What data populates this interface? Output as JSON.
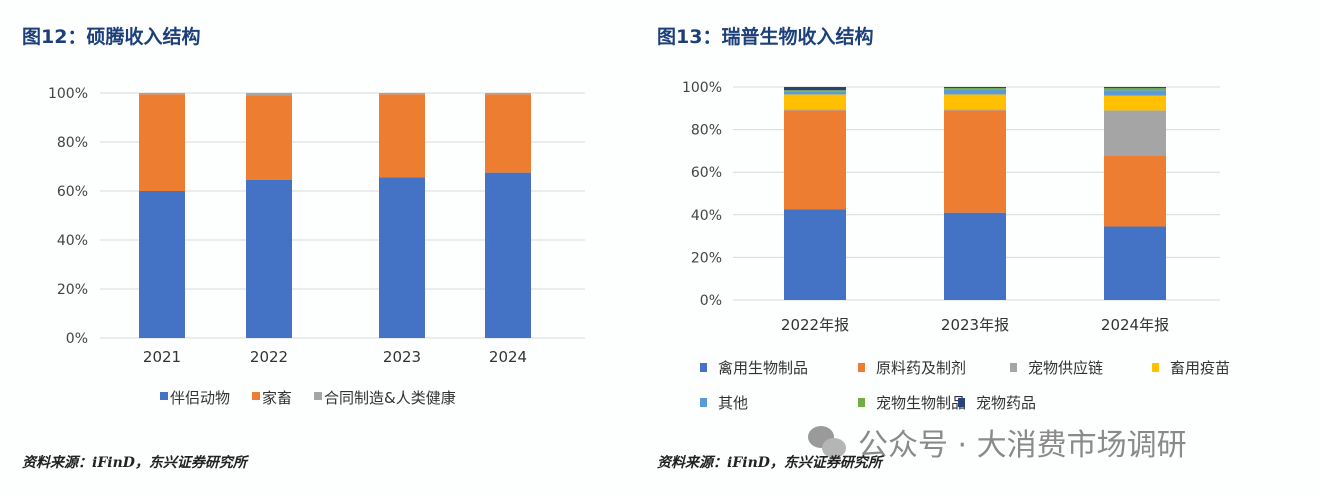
{
  "chart_data": [
    {
      "type": "bar",
      "stacked": true,
      "title": "图12：硕腾收入结构",
      "categories": [
        "2021",
        "2022",
        "2023",
        "2024"
      ],
      "ylim": [
        0,
        100
      ],
      "yticks": [
        "0%",
        "20%",
        "40%",
        "60%",
        "80%",
        "100%"
      ],
      "grid": true,
      "legend_position": "bottom",
      "series": [
        {
          "name": "伴侣动物",
          "color": "#4472c4",
          "values": [
            60,
            64.5,
            65.5,
            67.5
          ]
        },
        {
          "name": "家畜",
          "color": "#ed7d31",
          "values": [
            39.5,
            34.5,
            34,
            32
          ]
        },
        {
          "name": "合同制造&人类健康",
          "color": "#a5a5a5",
          "values": [
            0.5,
            1,
            0.5,
            0.5
          ]
        }
      ],
      "source": "资料来源：iFinD，东兴证券研究所"
    },
    {
      "type": "bar",
      "stacked": true,
      "title": "图13：瑞普生物收入结构",
      "categories": [
        "2022年报",
        "2023年报",
        "2024年报"
      ],
      "ylim": [
        0,
        100
      ],
      "yticks": [
        "0%",
        "20%",
        "40%",
        "60%",
        "80%",
        "100%"
      ],
      "grid": true,
      "legend_position": "bottom",
      "series": [
        {
          "name": "禽用生物制品",
          "color": "#4472c4",
          "values": [
            42.5,
            41,
            34.5
          ]
        },
        {
          "name": "原料药及制剂",
          "color": "#ed7d31",
          "values": [
            46.5,
            48,
            33.5
          ]
        },
        {
          "name": "宠物供应链",
          "color": "#a5a5a5",
          "values": [
            0.5,
            0.5,
            21
          ]
        },
        {
          "name": "畜用疫苗",
          "color": "#ffc000",
          "values": [
            7,
            7,
            7
          ]
        },
        {
          "name": "其他",
          "color": "#5b9bd5",
          "values": [
            1.5,
            2.5,
            2.5
          ]
        },
        {
          "name": "宠物生物制品",
          "color": "#70ad47",
          "values": [
            0.5,
            0.5,
            1
          ]
        },
        {
          "name": "宠物药品",
          "color": "#264478",
          "values": [
            1.5,
            0.5,
            0.5
          ]
        }
      ],
      "source": "资料来源：iFinD，东兴证券研究所"
    }
  ],
  "watermark": "公众号 · 大消费市场调研"
}
